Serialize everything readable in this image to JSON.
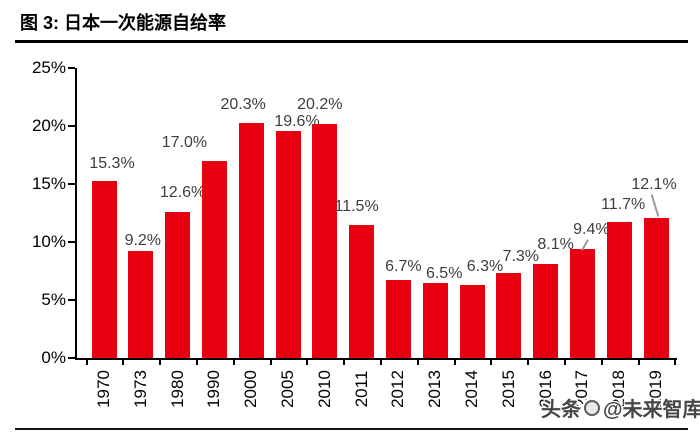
{
  "figure": {
    "title": "图 3: 日本一次能源自给率",
    "watermark": {
      "source": "头条",
      "handle": "@未来智库"
    }
  },
  "chart_data": {
    "type": "bar",
    "title": "日本一次能源自给率",
    "categories": [
      "1970",
      "1973",
      "1980",
      "1990",
      "2000",
      "2005",
      "2010",
      "2011",
      "2012",
      "2013",
      "2014",
      "2015",
      "2016",
      "2017",
      "2018",
      "2019"
    ],
    "values": [
      15.3,
      9.2,
      12.6,
      17.0,
      20.3,
      19.6,
      20.2,
      11.5,
      6.7,
      6.5,
      6.3,
      7.3,
      8.1,
      9.4,
      11.7,
      12.1
    ],
    "data_labels": [
      "15.3%",
      "9.2%",
      "12.6%",
      "17.0%",
      "20.3%",
      "19.6%",
      "20.2%",
      "11.5%",
      "6.7%",
      "6.5%",
      "6.3%",
      "7.3%",
      "8.1%",
      "9.4%",
      "11.7%",
      "12.1%"
    ],
    "unit": "%",
    "ylim": [
      0,
      25
    ],
    "yticks": [
      "0%",
      "5%",
      "10%",
      "15%",
      "20%",
      "25%"
    ],
    "grid": false,
    "legend": "none",
    "bar_color": "#E60012",
    "data_label_color": "#3D3D3D",
    "axis_color": "#000000",
    "leader_line_years": [
      "2017",
      "2019"
    ]
  }
}
